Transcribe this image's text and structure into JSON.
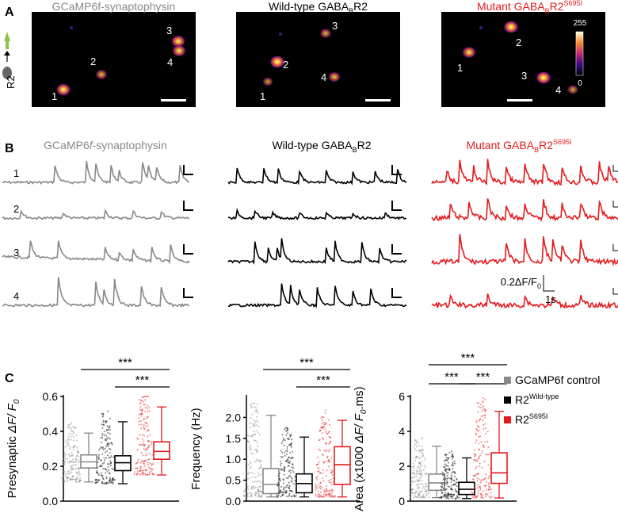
{
  "panels": {
    "A": "A",
    "B": "B",
    "C": "C"
  },
  "colors": {
    "control": "#888888",
    "wildtype": "#000000",
    "mutant": "#e41a1c"
  },
  "panelA": {
    "schematic_label": "R2",
    "images": [
      {
        "title": "GCaMP6f-synaptophysin",
        "title_color": "#888888",
        "rois": [
          {
            "label": "1",
            "brightness": 0.9
          },
          {
            "label": "2",
            "brightness": 0.55
          },
          {
            "label": "3",
            "brightness": 0.85
          },
          {
            "label": "4",
            "brightness": 0.8
          }
        ]
      },
      {
        "title": "Wild-type GABA",
        "title_sub": "B",
        "title_end": "R2",
        "title_color": "#000000",
        "rois": [
          {
            "label": "1",
            "brightness": 0.4
          },
          {
            "label": "2",
            "brightness": 0.95
          },
          {
            "label": "3",
            "brightness": 0.5
          },
          {
            "label": "4",
            "brightness": 0.6
          }
        ]
      },
      {
        "title": "Mutant GABA",
        "title_sub": "B",
        "title_end": "R2",
        "title_sup": "S695I",
        "title_color": "#e41a1c",
        "rois": [
          {
            "label": "1",
            "brightness": 0.8
          },
          {
            "label": "2",
            "brightness": 0.95
          },
          {
            "label": "3",
            "brightness": 0.95
          },
          {
            "label": "4",
            "brightness": 0.45
          }
        ]
      }
    ],
    "colorbar": {
      "max_label": "255",
      "min_label": "0"
    }
  },
  "panelB": {
    "titles": [
      {
        "text": "GCaMP6",
        "italic": "f",
        "end": "-synaptophysin",
        "color": "#888888"
      },
      {
        "text": "Wild-type GABA",
        "sub": "B",
        "end": "R2",
        "color": "#000000"
      },
      {
        "text": "Mutant GABA",
        "sub": "B",
        "end": "R2",
        "sup": "S695I",
        "color": "#e41a1c"
      }
    ],
    "row_labels": [
      "1",
      "2",
      "3",
      "4"
    ],
    "scale_y": "0.2ΔF/F",
    "scale_y_sub": "0",
    "scale_x": "1s"
  },
  "panelC": {
    "legend": [
      {
        "label": "GCaMP6f control",
        "color": "#888888"
      },
      {
        "label": "R2",
        "sup": "Wild-type",
        "color": "#000000"
      },
      {
        "label": "R2",
        "sup": "S695I",
        "color": "#e41a1c"
      }
    ],
    "significance": "***"
  },
  "chart_data": [
    {
      "type": "box",
      "ylabel_pre": "Presynaptic ",
      "ylabel_italic": "ΔF/ F",
      "ylabel_sub": "0",
      "ylim": [
        0,
        0.6
      ],
      "yticks": [
        "0.0",
        "0.2",
        "0.4",
        "0.6"
      ],
      "series": [
        {
          "group": "control",
          "min": 0.11,
          "q1": 0.19,
          "median": 0.225,
          "q3": 0.265,
          "max": 0.39
        },
        {
          "group": "wildtype",
          "min": 0.1,
          "q1": 0.175,
          "median": 0.22,
          "q3": 0.26,
          "max": 0.455
        },
        {
          "group": "mutant",
          "min": 0.15,
          "q1": 0.24,
          "median": 0.285,
          "q3": 0.34,
          "max": 0.54
        }
      ],
      "comparisons": [
        {
          "from": 0,
          "to": 2,
          "label": "***"
        },
        {
          "from": 1,
          "to": 2,
          "label": "***"
        }
      ]
    },
    {
      "type": "box",
      "ylabel_pre": "Frequency (Hz)",
      "ylim": [
        0,
        2.5
      ],
      "yticks": [
        "0.0",
        "0.5",
        "1.0",
        "1.5",
        "2.0"
      ],
      "series": [
        {
          "group": "control",
          "min": 0.1,
          "q1": 0.18,
          "median": 0.4,
          "q3": 0.78,
          "max": 2.05
        },
        {
          "group": "wildtype",
          "min": 0.1,
          "q1": 0.2,
          "median": 0.42,
          "q3": 0.65,
          "max": 1.53
        },
        {
          "group": "mutant",
          "min": 0.1,
          "q1": 0.4,
          "median": 0.87,
          "q3": 1.3,
          "max": 1.93
        }
      ],
      "comparisons": [
        {
          "from": 0,
          "to": 2,
          "label": "***"
        },
        {
          "from": 1,
          "to": 2,
          "label": "***"
        }
      ]
    },
    {
      "type": "box",
      "ylabel_pre": "Area (x1000 ",
      "ylabel_italic": "ΔF/ F",
      "ylabel_sub": "0",
      "ylabel_end": ".ms)",
      "ylim": [
        0,
        6
      ],
      "yticks": [
        "0",
        "2",
        "4",
        "6"
      ],
      "series": [
        {
          "group": "control",
          "min": 0.2,
          "q1": 0.62,
          "median": 1.05,
          "q3": 1.55,
          "max": 3.15
        },
        {
          "group": "wildtype",
          "min": 0.15,
          "q1": 0.38,
          "median": 0.68,
          "q3": 1.08,
          "max": 2.48
        },
        {
          "group": "mutant",
          "min": 0.18,
          "q1": 1.02,
          "median": 1.62,
          "q3": 2.77,
          "max": 5.15
        }
      ],
      "comparisons": [
        {
          "from": 0,
          "to": 2,
          "label": "***"
        },
        {
          "from": 0,
          "to": 1,
          "label": "***"
        },
        {
          "from": 1,
          "to": 2,
          "label": "***"
        }
      ]
    }
  ]
}
